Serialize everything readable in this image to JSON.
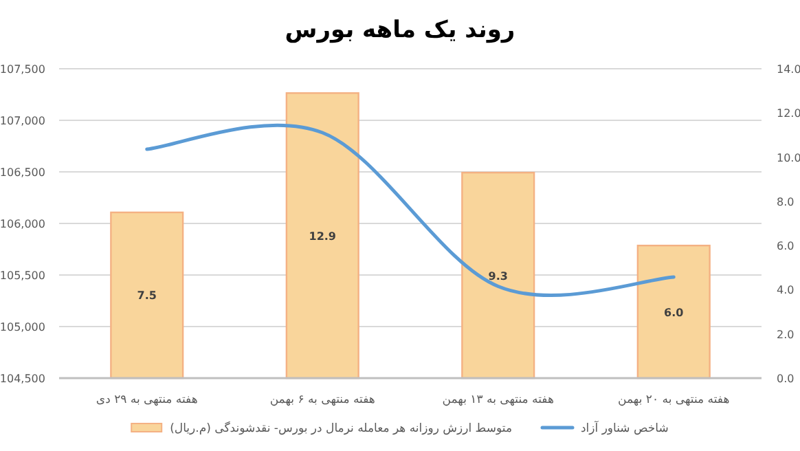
{
  "chart_data": {
    "type": "bar",
    "title": "روند یک ماهه بورس",
    "categories": [
      "هفته منتهی به ۲۹ دی",
      "هفته منتهی به ۶ بهمن",
      "هفته منتهی به ۱۳ بهمن",
      "هفته منتهی به ۲۰ بهمن"
    ],
    "series": [
      {
        "name": "متوسط ارزش روزانه هر معامله نرمال در بورس- نقدشوندگی (م.ریال)",
        "axis": "y2",
        "color": "#f9d59b",
        "values": [
          7.5,
          12.9,
          9.3,
          6.0
        ],
        "value_labels": [
          "7.5",
          "12.9",
          "9.3",
          "6.0"
        ]
      },
      {
        "name": "شاخص شناور آزاد",
        "type": "line",
        "color": "#5b9bd5",
        "values": [
          106720,
          106880,
          105390,
          105480
        ]
      }
    ],
    "ylim": [
      104500,
      107500
    ],
    "yticks": [
      {
        "value": 104500,
        "label": "104,500"
      },
      {
        "value": 105000,
        "label": "105,000"
      },
      {
        "value": 105500,
        "label": "105,500"
      },
      {
        "value": 106000,
        "label": "106,000"
      },
      {
        "value": 106500,
        "label": "106,500"
      },
      {
        "value": 107000,
        "label": "107,000"
      },
      {
        "value": 107500,
        "label": "107,500"
      }
    ],
    "y2lim": [
      0,
      14
    ],
    "y2ticks": [
      {
        "value": 0,
        "label": "0.0"
      },
      {
        "value": 2,
        "label": "2.0"
      },
      {
        "value": 4,
        "label": "4.0"
      },
      {
        "value": 6,
        "label": "6.0"
      },
      {
        "value": 8,
        "label": "8.0"
      },
      {
        "value": 10,
        "label": "10.0"
      },
      {
        "value": 12,
        "label": "12.0"
      },
      {
        "value": 14,
        "label": "14.0"
      }
    ],
    "grid": "y",
    "legend": "bottom"
  }
}
